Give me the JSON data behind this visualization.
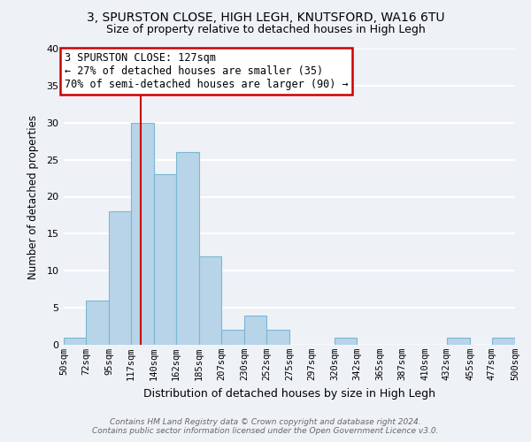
{
  "title_line1": "3, SPURSTON CLOSE, HIGH LEGH, KNUTSFORD, WA16 6TU",
  "title_line2": "Size of property relative to detached houses in High Legh",
  "xlabel": "Distribution of detached houses by size in High Legh",
  "ylabel": "Number of detached properties",
  "bar_color": "#b8d4e8",
  "bar_edge_color": "#7ab8d4",
  "bin_edges": [
    50,
    72,
    95,
    117,
    140,
    162,
    185,
    207,
    230,
    252,
    275,
    297,
    320,
    342,
    365,
    387,
    410,
    432,
    455,
    477,
    500
  ],
  "bin_labels": [
    "50sqm",
    "72sqm",
    "95sqm",
    "117sqm",
    "140sqm",
    "162sqm",
    "185sqm",
    "207sqm",
    "230sqm",
    "252sqm",
    "275sqm",
    "297sqm",
    "320sqm",
    "342sqm",
    "365sqm",
    "387sqm",
    "410sqm",
    "432sqm",
    "455sqm",
    "477sqm",
    "500sqm"
  ],
  "counts": [
    1,
    6,
    18,
    30,
    23,
    26,
    12,
    2,
    4,
    2,
    0,
    0,
    1,
    0,
    0,
    0,
    0,
    1,
    0,
    1
  ],
  "ylim": [
    0,
    40
  ],
  "yticks": [
    0,
    5,
    10,
    15,
    20,
    25,
    30,
    35,
    40
  ],
  "property_line_x": 127,
  "property_line_color": "#cc0000",
  "annotation_text": "3 SPURSTON CLOSE: 127sqm\n← 27% of detached houses are smaller (35)\n70% of semi-detached houses are larger (90) →",
  "annotation_box_color": "#ffffff",
  "annotation_box_edge": "#cc0000",
  "footer_line1": "Contains HM Land Registry data © Crown copyright and database right 2024.",
  "footer_line2": "Contains public sector information licensed under the Open Government Licence v3.0.",
  "bg_color": "#eef2f7",
  "grid_color": "#ffffff"
}
